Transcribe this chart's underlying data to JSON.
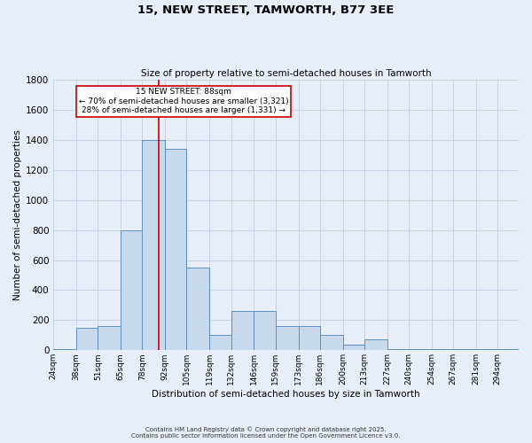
{
  "title1": "15, NEW STREET, TAMWORTH, B77 3EE",
  "title2": "Size of property relative to semi-detached houses in Tamworth",
  "xlabel": "Distribution of semi-detached houses by size in Tamworth",
  "ylabel": "Number of semi-detached properties",
  "categories": [
    "24sqm",
    "38sqm",
    "51sqm",
    "65sqm",
    "78sqm",
    "92sqm",
    "105sqm",
    "119sqm",
    "132sqm",
    "146sqm",
    "159sqm",
    "173sqm",
    "186sqm",
    "200sqm",
    "213sqm",
    "227sqm",
    "240sqm",
    "254sqm",
    "267sqm",
    "281sqm",
    "294sqm"
  ],
  "values": [
    5,
    150,
    160,
    800,
    1400,
    1340,
    550,
    100,
    260,
    260,
    160,
    160,
    100,
    40,
    70,
    5,
    5,
    5,
    5,
    5,
    5
  ],
  "bar_color": "#c9d9ed",
  "bar_edge_color": "#5a8fc0",
  "grid_color": "#c8d4e8",
  "background_color": "#e8eef8",
  "annotation_text": "15 NEW STREET: 88sqm\n← 70% of semi-detached houses are smaller (3,321)\n28% of semi-detached houses are larger (1,331) →",
  "vline_x": 88,
  "vline_color": "#cc0000",
  "annotation_box_color": "#ffffff",
  "annotation_box_edge": "#cc0000",
  "ylim": [
    0,
    1800
  ],
  "footnote1": "Contains HM Land Registry data © Crown copyright and database right 2025.",
  "footnote2": "Contains public sector information licensed under the Open Government Licence v3.0."
}
